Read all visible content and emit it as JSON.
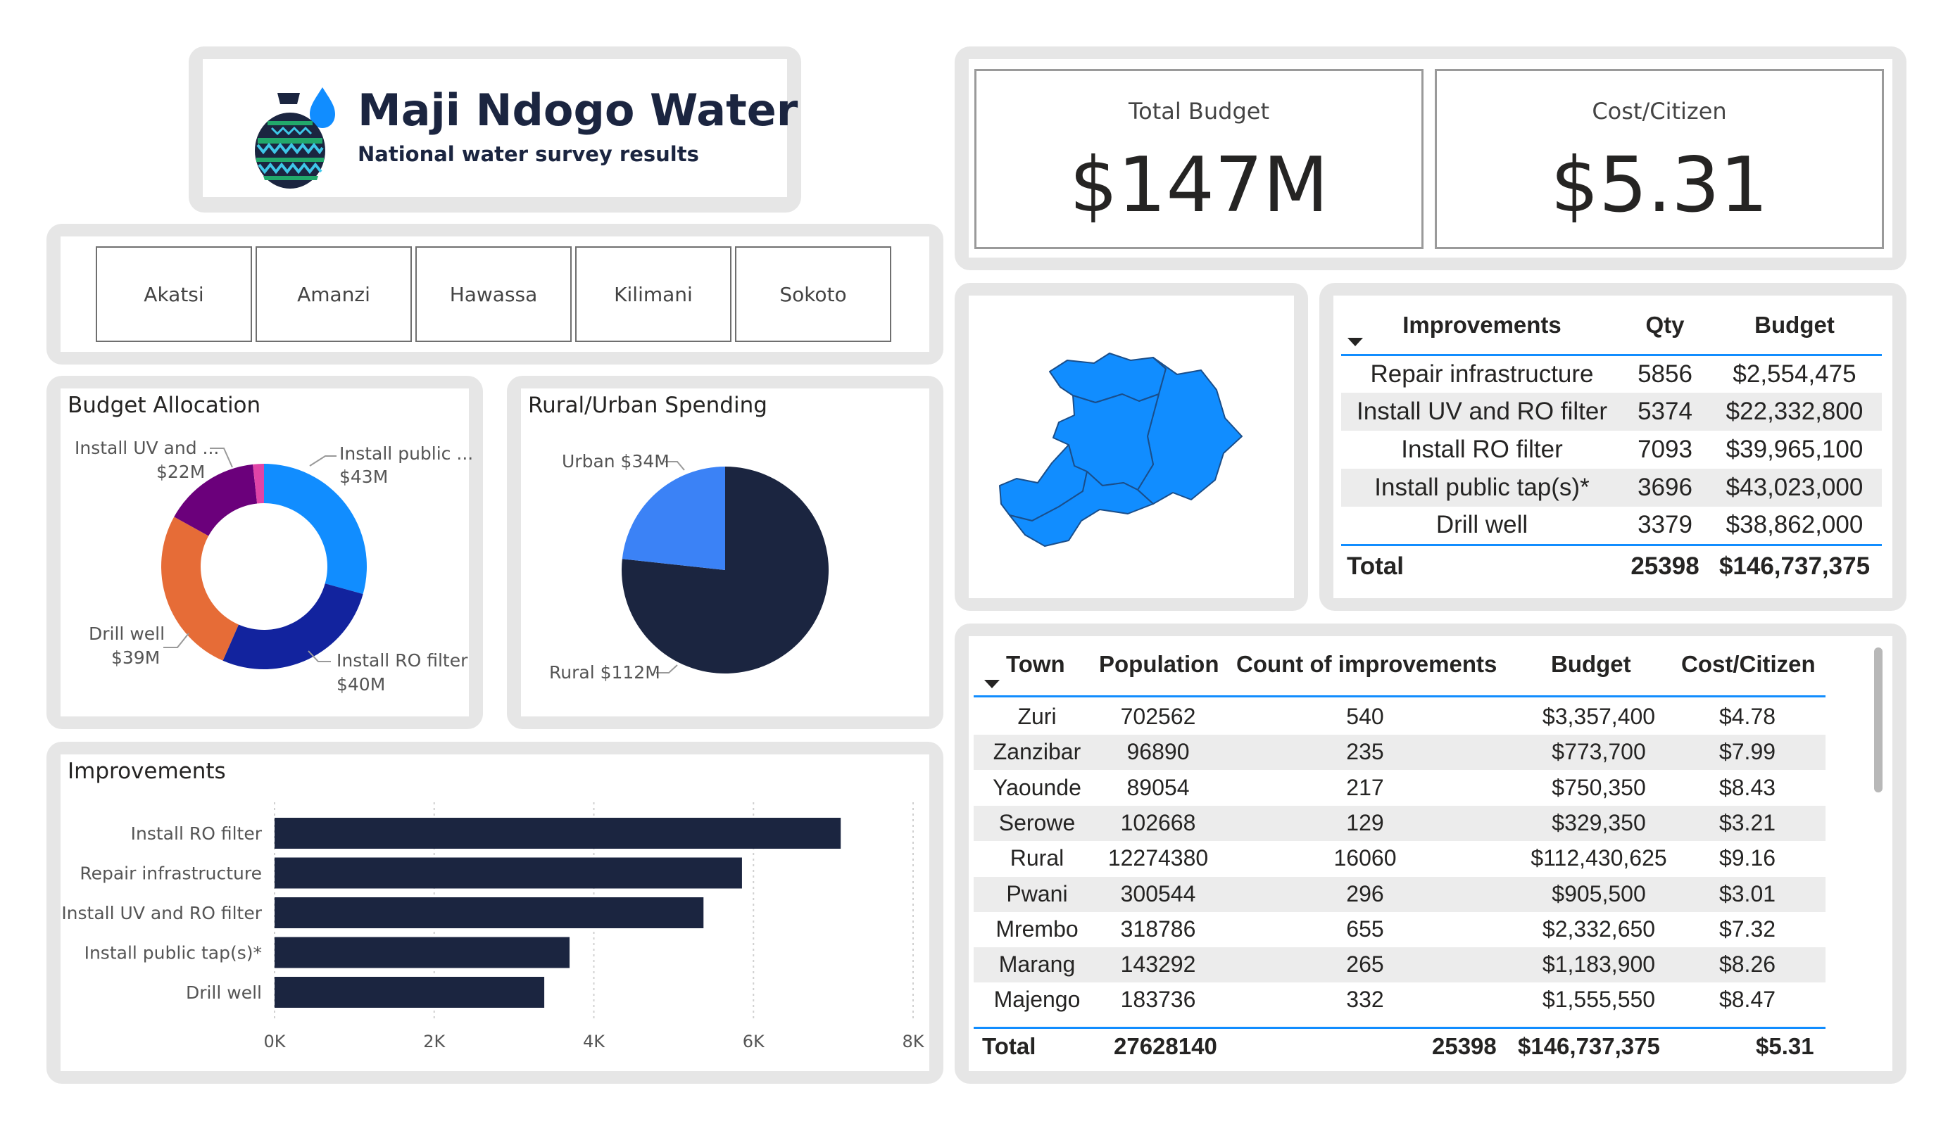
{
  "header": {
    "title": "Maji Ndogo Water",
    "subtitle": "National water survey results",
    "logo_icon": "water-pot-icon"
  },
  "slicer": {
    "items": [
      "Akatsi",
      "Amanzi",
      "Hawassa",
      "Kilimani",
      "Sokoto"
    ]
  },
  "kpis": {
    "total_budget_label": "Total Budget",
    "total_budget_value": "$147M",
    "cost_citizen_label": "Cost/Citizen",
    "cost_citizen_value": "$5.31"
  },
  "budget_allocation": {
    "title": "Budget Allocation",
    "labels": {
      "uv_name": "Install UV and ...",
      "uv_value": "$22M",
      "tap_name": "Install public ...",
      "tap_value": "$43M",
      "drill_name": "Drill well",
      "drill_value": "$39M",
      "ro_name": "Install RO filter",
      "ro_value": "$40M"
    }
  },
  "rural_urban": {
    "title": "Rural/Urban Spending",
    "urban_label": "Urban $34M",
    "rural_label": "Rural $112M"
  },
  "improvements_chart": {
    "title": "Improvements",
    "ticks": [
      "0K",
      "2K",
      "4K",
      "6K",
      "8K"
    ]
  },
  "chart_data": [
    {
      "type": "pie",
      "title": "Budget Allocation",
      "donut": true,
      "categories": [
        "Install public tap(s)*",
        "Install RO filter",
        "Drill well",
        "Install UV and RO filter",
        "Repair infrastructure"
      ],
      "values": [
        43023000,
        39965100,
        38862000,
        22332800,
        2554475
      ],
      "colors": [
        "#118dff",
        "#12239e",
        "#e66c37",
        "#6b007b",
        "#e044a7"
      ]
    },
    {
      "type": "pie",
      "title": "Rural/Urban Spending",
      "categories": [
        "Rural",
        "Urban"
      ],
      "values": [
        112,
        34
      ],
      "colors": [
        "#1b2540",
        "#3b82f6"
      ]
    },
    {
      "type": "bar",
      "orientation": "horizontal",
      "title": "Improvements",
      "categories": [
        "Install RO filter",
        "Repair infrastructure",
        "Install UV and RO filter",
        "Install public tap(s)*",
        "Drill well"
      ],
      "values": [
        7093,
        5856,
        5374,
        3696,
        3379
      ],
      "xlim": [
        0,
        8000
      ],
      "color": "#1b2540",
      "grid": true
    }
  ],
  "improvements_table": {
    "headers": [
      "Improvements",
      "Qty",
      "Budget"
    ],
    "rows": [
      [
        "Repair infrastructure",
        "5856",
        "$2,554,475"
      ],
      [
        "Install UV and RO filter",
        "5374",
        "$22,332,800"
      ],
      [
        "Install RO filter",
        "7093",
        "$39,965,100"
      ],
      [
        "Install public tap(s)*",
        "3696",
        "$43,023,000"
      ],
      [
        "Drill well",
        "3379",
        "$38,862,000"
      ]
    ],
    "total": [
      "Total",
      "25398",
      "$146,737,375"
    ]
  },
  "town_table": {
    "headers": [
      "Town",
      "Population",
      "Count of improvements",
      "Budget",
      "Cost/Citizen"
    ],
    "rows": [
      [
        "Zuri",
        "702562",
        "540",
        "$3,357,400",
        "$4.78"
      ],
      [
        "Zanzibar",
        "96890",
        "235",
        "$773,700",
        "$7.99"
      ],
      [
        "Yaounde",
        "89054",
        "217",
        "$750,350",
        "$8.43"
      ],
      [
        "Serowe",
        "102668",
        "129",
        "$329,350",
        "$3.21"
      ],
      [
        "Rural",
        "12274380",
        "16060",
        "$112,430,625",
        "$9.16"
      ],
      [
        "Pwani",
        "300544",
        "296",
        "$905,500",
        "$3.01"
      ],
      [
        "Mrembo",
        "318786",
        "655",
        "$2,332,650",
        "$7.32"
      ],
      [
        "Marang",
        "143292",
        "265",
        "$1,183,900",
        "$8.26"
      ],
      [
        "Majengo",
        "183736",
        "332",
        "$1,555,550",
        "$8.47"
      ]
    ],
    "total": [
      "Total",
      "27628140",
      "25398",
      "$146,737,375",
      "$5.31"
    ]
  },
  "map": {
    "color": "#118dff"
  }
}
